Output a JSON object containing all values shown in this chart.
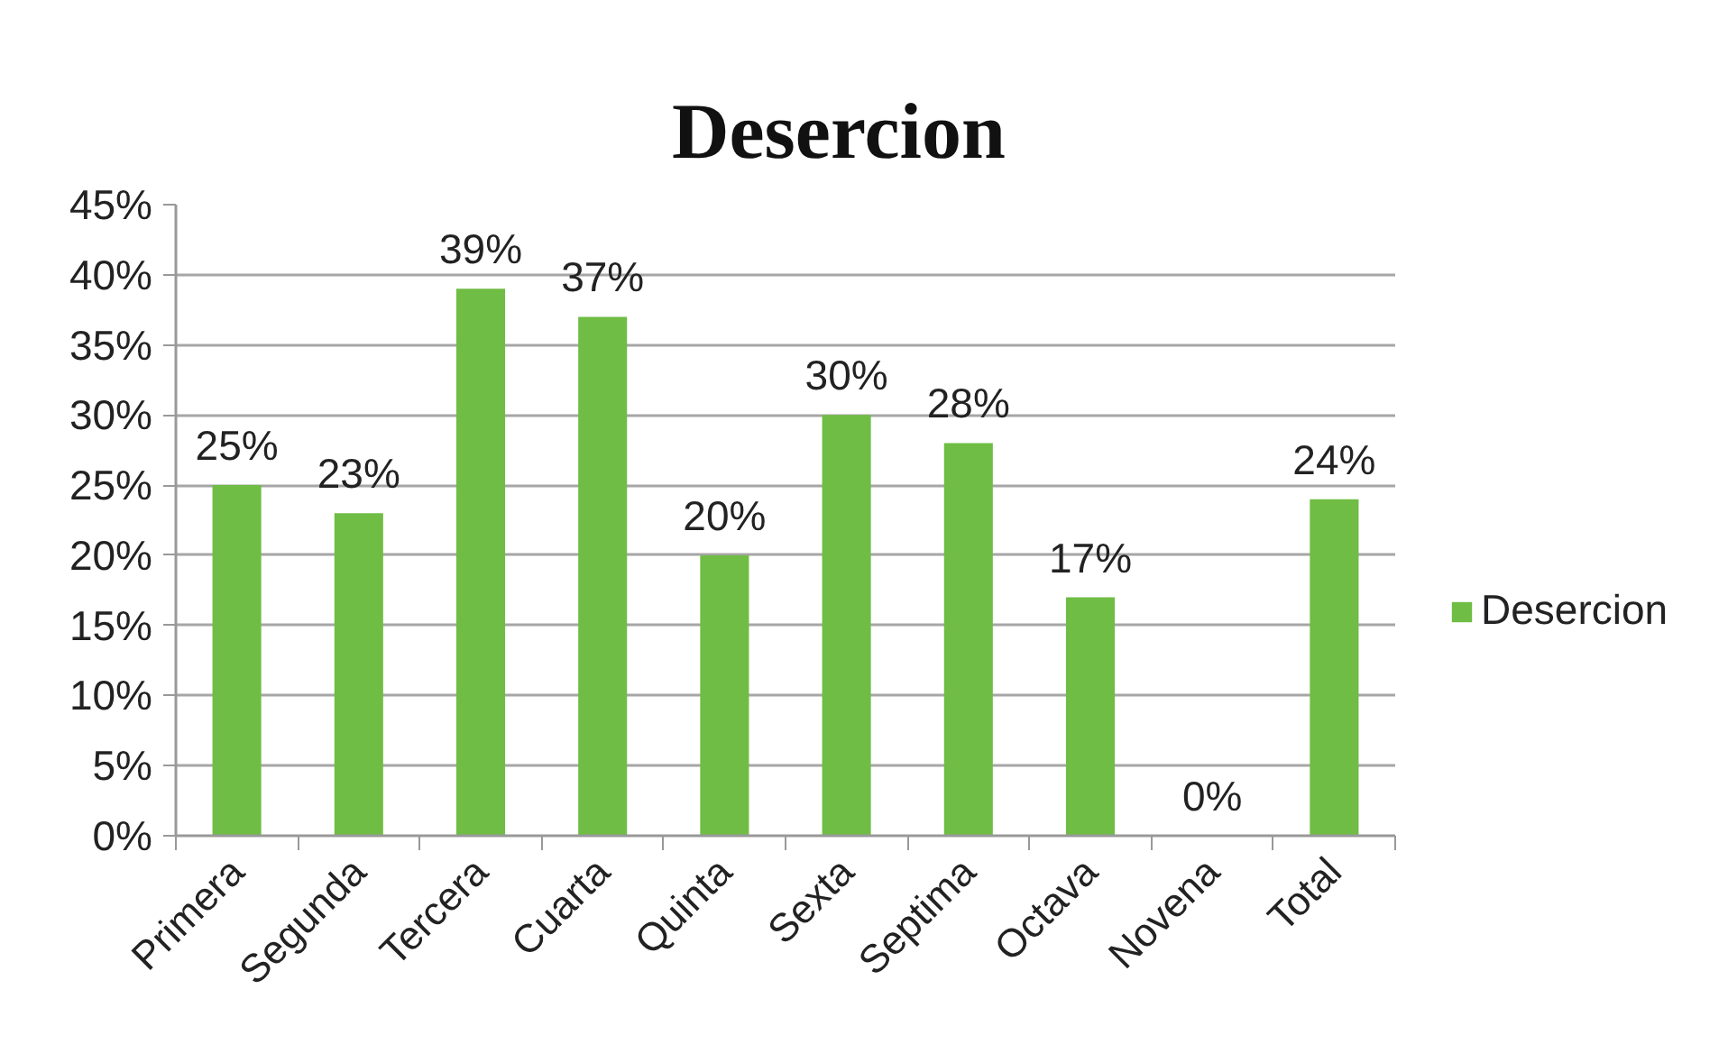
{
  "chart_data": {
    "type": "bar",
    "title": "Desercion",
    "categories": [
      "Primera",
      "Segunda",
      "Tercera",
      "Cuarta",
      "Quinta",
      "Sexta",
      "Septima",
      "Octava",
      "Novena",
      "Total"
    ],
    "series": [
      {
        "name": "Desercion",
        "color": "#6fbd44",
        "values": [
          25,
          23,
          39,
          37,
          20,
          30,
          28,
          17,
          0,
          24
        ],
        "value_labels": [
          "25%",
          "23%",
          "39%",
          "37%",
          "20%",
          "30%",
          "28%",
          "17%",
          "0%",
          "24%"
        ]
      }
    ],
    "ylim": [
      0,
      45
    ],
    "yticks": [
      {
        "value": 0,
        "label": "0%"
      },
      {
        "value": 5,
        "label": "5%"
      },
      {
        "value": 10,
        "label": "10%"
      },
      {
        "value": 15,
        "label": "15%"
      },
      {
        "value": 20,
        "label": "20%"
      },
      {
        "value": 25,
        "label": "25%"
      },
      {
        "value": 30,
        "label": "30%"
      },
      {
        "value": 35,
        "label": "35%"
      },
      {
        "value": 40,
        "label": "40%"
      },
      {
        "value": 45,
        "label": "45%"
      }
    ],
    "grid": "y",
    "legend": "right"
  }
}
